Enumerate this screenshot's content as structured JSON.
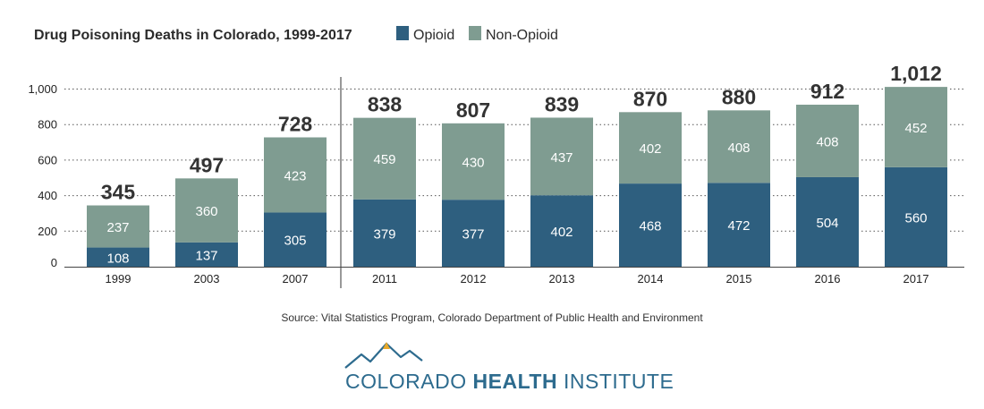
{
  "chart_data": {
    "type": "bar",
    "stacked": true,
    "title": "Drug Poisoning Deaths in Colorado, 1999-2017",
    "categories": [
      "1999",
      "2003",
      "2007",
      "2011",
      "2012",
      "2013",
      "2014",
      "2015",
      "2016",
      "2017"
    ],
    "series": [
      {
        "name": "Opioid",
        "color": "#2e5f7f",
        "values": [
          108,
          137,
          305,
          379,
          377,
          402,
          468,
          472,
          504,
          560
        ]
      },
      {
        "name": "Non-Opioid",
        "color": "#7f9c91",
        "values": [
          237,
          360,
          423,
          459,
          430,
          437,
          402,
          408,
          408,
          452
        ]
      }
    ],
    "totals": [
      "345",
      "497",
      "728",
      "838",
      "807",
      "839",
      "870",
      "880",
      "912",
      "1,012"
    ],
    "yticks": [
      "0",
      "200",
      "400",
      "600",
      "800",
      "1,000"
    ],
    "ylim": [
      0,
      1050
    ],
    "grid": true,
    "legend_position": "top"
  },
  "source": "Source: Vital Statistics Program, Colorado Department of Public Health and Environment",
  "logo": {
    "text_light_1": "COLORADO ",
    "text_bold": "HEALTH",
    "text_light_2": " INSTITUTE",
    "mountain_color": "#2d6b8e",
    "sun_color": "#e8a82a"
  }
}
